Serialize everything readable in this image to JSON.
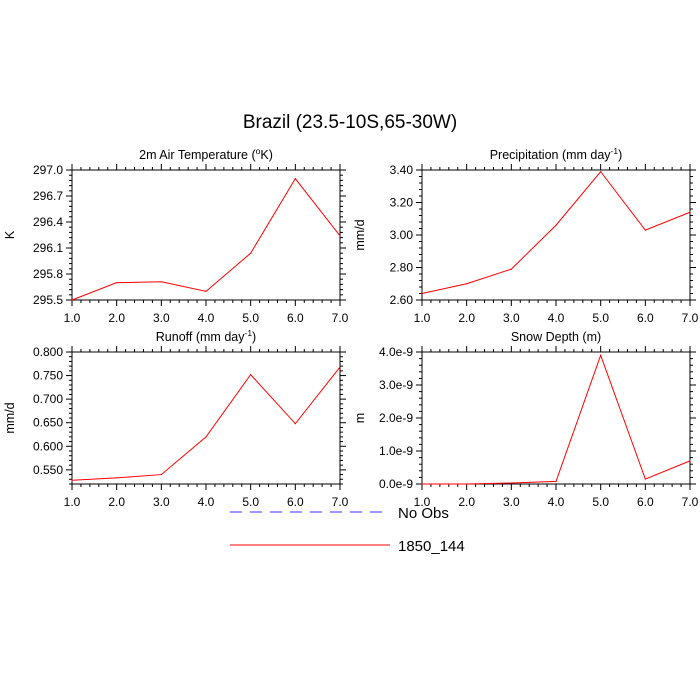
{
  "title": "Brazil (23.5-10S,65-30W)",
  "chart_data": [
    {
      "type": "line",
      "title_main": "2m Air Temperature (",
      "title_sup": "o",
      "title_tail": "K)",
      "ylabel": "K",
      "x": [
        1,
        2,
        3,
        4,
        5,
        6,
        7
      ],
      "xlim": [
        1,
        7
      ],
      "xticks": [
        "1.0",
        "2.0",
        "3.0",
        "4.0",
        "5.0",
        "6.0",
        "7.0"
      ],
      "ylim": [
        295.5,
        297.0
      ],
      "ytick_values": [
        295.5,
        295.8,
        296.1,
        296.4,
        296.7,
        297.0
      ],
      "yticks": [
        "295.5",
        "295.8",
        "296.1",
        "296.4",
        "296.7",
        "297.0"
      ],
      "series": [
        {
          "name": "1850_144",
          "color": "#ff0000",
          "values": [
            295.5,
            295.7,
            295.71,
            295.6,
            296.04,
            296.9,
            296.24
          ]
        }
      ]
    },
    {
      "type": "line",
      "title_main": "Precipitation (mm day",
      "title_sup": "-1",
      "title_tail": ")",
      "ylabel": "mm/d",
      "x": [
        1,
        2,
        3,
        4,
        5,
        6,
        7
      ],
      "xlim": [
        1,
        7
      ],
      "xticks": [
        "1.0",
        "2.0",
        "3.0",
        "4.0",
        "5.0",
        "6.0",
        "7.0"
      ],
      "ylim": [
        2.6,
        3.4
      ],
      "ytick_values": [
        2.6,
        2.8,
        3.0,
        3.2,
        3.4
      ],
      "yticks": [
        "2.60",
        "2.80",
        "3.00",
        "3.20",
        "3.40"
      ],
      "series": [
        {
          "name": "1850_144",
          "color": "#ff0000",
          "values": [
            2.64,
            2.7,
            2.79,
            3.06,
            3.39,
            3.03,
            3.14
          ]
        }
      ]
    },
    {
      "type": "line",
      "title_main": "Runoff (mm day",
      "title_sup": "-1",
      "title_tail": ")",
      "ylabel": "mm/d",
      "x": [
        1,
        2,
        3,
        4,
        5,
        6,
        7
      ],
      "xlim": [
        1,
        7
      ],
      "xticks": [
        "1.0",
        "2.0",
        "3.0",
        "4.0",
        "5.0",
        "6.0",
        "7.0"
      ],
      "ylim": [
        0.52,
        0.8
      ],
      "ytick_values": [
        0.55,
        0.6,
        0.65,
        0.7,
        0.75,
        0.8
      ],
      "yticks": [
        "0.550",
        "0.600",
        "0.650",
        "0.700",
        "0.750",
        "0.800"
      ],
      "series": [
        {
          "name": "1850_144",
          "color": "#ff0000",
          "values": [
            0.528,
            0.533,
            0.54,
            0.62,
            0.752,
            0.648,
            0.768
          ]
        }
      ]
    },
    {
      "type": "line",
      "title_main": "Snow Depth (m)",
      "title_sup": "",
      "title_tail": "",
      "ylabel": "m",
      "x": [
        1,
        2,
        3,
        4,
        5,
        6,
        7
      ],
      "xlim": [
        1,
        7
      ],
      "xticks": [
        "1.0",
        "2.0",
        "3.0",
        "4.0",
        "5.0",
        "6.0",
        "7.0"
      ],
      "ylim": [
        0,
        4e-09
      ],
      "ytick_values": [
        0,
        1e-09,
        2e-09,
        3e-09,
        4e-09
      ],
      "yticks": [
        "0.0e-9",
        "1.0e-9",
        "2.0e-9",
        "3.0e-9",
        "4.0e-9"
      ],
      "series": [
        {
          "name": "1850_144",
          "color": "#ff0000",
          "values": [
            0,
            0,
            3e-11,
            8e-11,
            3.9e-09,
            1.5e-10,
            7e-10
          ]
        }
      ]
    }
  ],
  "legend": [
    {
      "label": "No Obs",
      "color": "#3333ff",
      "style": "dashed"
    },
    {
      "label": "1850_144",
      "color": "#ff0000",
      "style": "solid"
    }
  ]
}
